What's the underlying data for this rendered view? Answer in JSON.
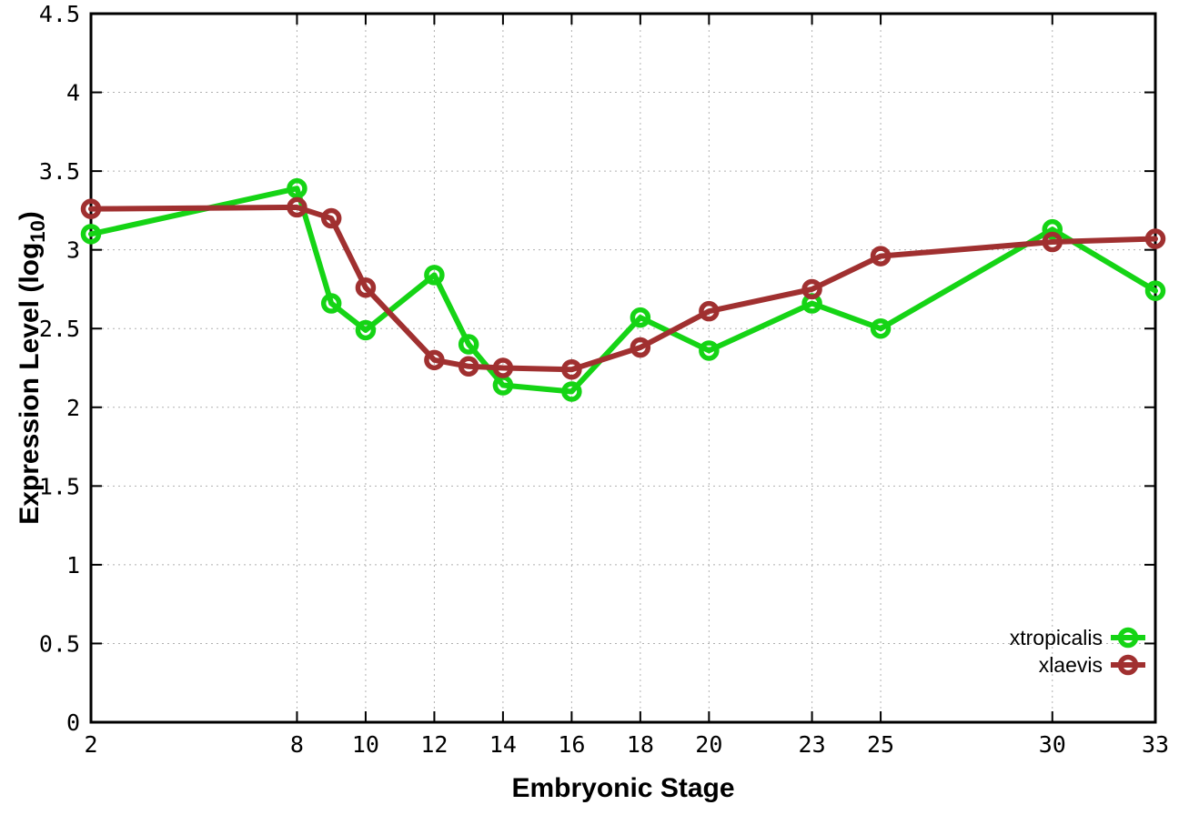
{
  "chart_data": {
    "type": "line",
    "title": "",
    "xlabel": "Embryonic Stage",
    "ylabel": "Expression Level (log10)",
    "ylabel_parts": {
      "main": "Expression Level (log",
      "sub": "10",
      "end": ")"
    },
    "xlim": [
      2,
      33
    ],
    "ylim": [
      0,
      4.5
    ],
    "xticks": [
      2,
      8,
      10,
      12,
      14,
      16,
      18,
      20,
      23,
      25,
      30,
      33
    ],
    "xtick_labels": [
      "2",
      "8",
      "10",
      "12",
      "14",
      "16",
      "18",
      "20",
      "23",
      "25",
      "30",
      "33"
    ],
    "yticks": [
      0,
      0.5,
      1,
      1.5,
      2,
      2.5,
      3,
      3.5,
      4,
      4.5
    ],
    "ytick_labels": [
      "0",
      "0.5",
      "1",
      "1.5",
      "2",
      "2.5",
      "3",
      "3.5",
      "4",
      "4.5"
    ],
    "grid": true,
    "legend_position": "bottom-right",
    "x": [
      2,
      8,
      9,
      10,
      12,
      13,
      14,
      16,
      18,
      20,
      23,
      25,
      30,
      33
    ],
    "series": [
      {
        "name": "xtropicalis",
        "color": "#15d415",
        "marker": "open-circle",
        "values": [
          3.1,
          3.39,
          2.66,
          2.49,
          2.84,
          2.4,
          2.14,
          2.1,
          2.57,
          2.36,
          2.66,
          2.5,
          3.13,
          2.74
        ]
      },
      {
        "name": "xlaevis",
        "color": "#a03030",
        "marker": "open-circle",
        "values": [
          3.26,
          3.27,
          3.2,
          2.76,
          2.3,
          2.26,
          2.25,
          2.24,
          2.38,
          2.61,
          2.75,
          2.96,
          3.05,
          3.07
        ]
      }
    ],
    "style": {
      "frame_color": "#000000",
      "grid_color": "#b0b0b0",
      "background": "#ffffff"
    }
  }
}
